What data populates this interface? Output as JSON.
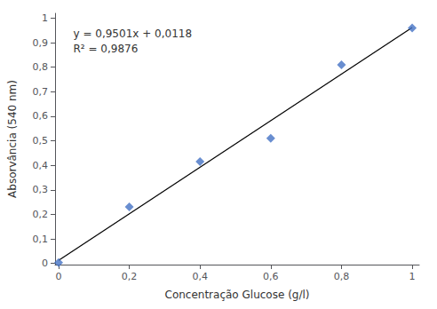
{
  "chart_data": {
    "type": "scatter",
    "x_label": "Concentração Glucose (g/l)",
    "y_label": "Absorvância (540 nm)",
    "annotations": [
      "y = 0,9501x + 0,0118",
      "R² = 0,9876"
    ],
    "series": [
      {
        "type": "scatter",
        "color": "#4472C4",
        "marker": "diamond",
        "x": [
          0,
          0.2,
          0.4,
          0.6,
          0.8,
          1.0
        ],
        "values": [
          0.003,
          0.23,
          0.415,
          0.51,
          0.81,
          0.96
        ]
      },
      {
        "type": "line",
        "color": "#000000",
        "line_style": "solid",
        "x": [
          0,
          1.0
        ],
        "values": [
          0.0118,
          0.9619
        ]
      }
    ],
    "xlim": [
      -0.01,
      1.02
    ],
    "ylim": [
      -0.005,
      1.02
    ],
    "xticks": [
      0,
      {
        "value": 0.2,
        "label": "0,2"
      },
      {
        "value": 0.4,
        "label": "0,4"
      },
      {
        "value": 0.6,
        "label": "0,6"
      },
      {
        "value": 0.8,
        "label": "0,8"
      },
      1
    ],
    "yticks": [
      0,
      {
        "value": 0.1,
        "label": "0,1"
      },
      {
        "value": 0.2,
        "label": "0,2"
      },
      {
        "value": 0.3,
        "label": "0,3"
      },
      {
        "value": 0.4,
        "label": "0,4"
      },
      {
        "value": 0.5,
        "label": "0,5"
      },
      {
        "value": 0.6,
        "label": "0,6"
      },
      {
        "value": 0.7,
        "label": "0,7"
      },
      {
        "value": 0.8,
        "label": "0,8"
      },
      {
        "value": 0.9,
        "label": "0,9"
      },
      1
    ],
    "grid": false
  }
}
